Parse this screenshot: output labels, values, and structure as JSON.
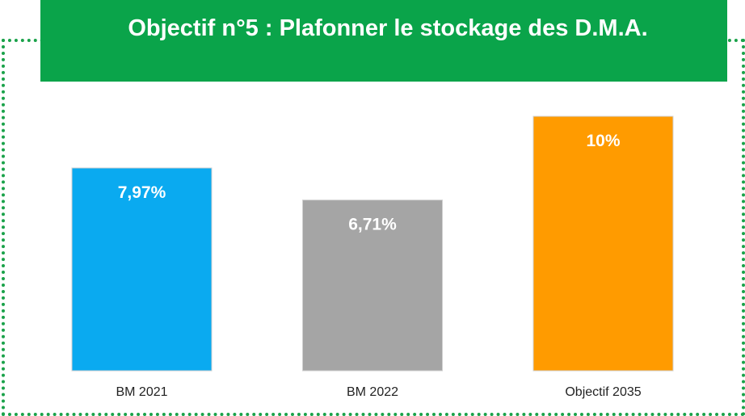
{
  "chart_data": {
    "type": "bar",
    "title": "Objectif n°5 : Plafonner le stockage des D.M.A.",
    "categories": [
      "BM 2021",
      "BM 2022",
      "Objectif 2035"
    ],
    "values": [
      7.97,
      6.71,
      10
    ],
    "value_labels": [
      "7,97%",
      "6,71%",
      "10%"
    ],
    "colors": [
      "#0aaaf0",
      "#a5a5a5",
      "#ff9b00"
    ]
  }
}
